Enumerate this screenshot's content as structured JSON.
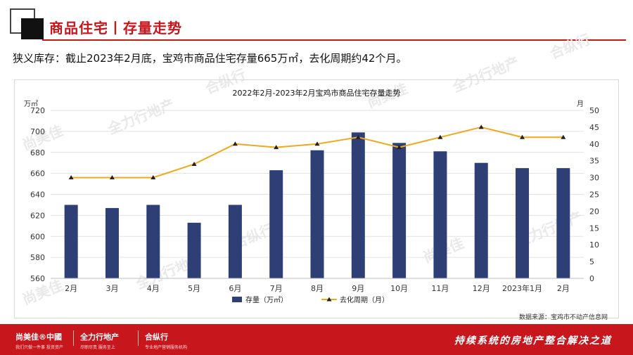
{
  "header": {
    "title": "商品住宅丨存量走势"
  },
  "summary": "狭义库存：截止2023年2月底，宝鸡市商品住宅存量665万㎡，去化周期约42个月。",
  "watermarks": [
    "尚美佳",
    "中國",
    "全力行地产",
    "合纵行"
  ],
  "source": "数据来源：宝鸡市不动产信息网",
  "footer": {
    "brand1": "尚美佳®中國",
    "brand1_sub": "我们只做一件事 投资资产",
    "brand2": "全力行地产",
    "brand2_sub": "尽职尽责 服务至上",
    "brand3": "合纵行",
    "brand3_sub": "专业地产营销服务机构",
    "slogan": "持续系统的房地产整合解决之道"
  },
  "chart_data": {
    "type": "bar+line",
    "title": "2022年2月-2023年2月宝鸡市商品住宅存量走势",
    "left_unit": "万㎡",
    "right_unit": "月",
    "categories": [
      "2月",
      "3月",
      "4月",
      "5月",
      "6月",
      "7月",
      "8月",
      "9月",
      "10月",
      "11月",
      "12月",
      "2023年1月",
      "2月"
    ],
    "series": [
      {
        "name": "存量（万㎡）",
        "type": "bar",
        "axis": "left",
        "color": "#2e3f76",
        "values": [
          630,
          627,
          630,
          613,
          630,
          663,
          682,
          699,
          689,
          681,
          670,
          665,
          665
        ]
      },
      {
        "name": "去化周期（月）",
        "type": "line",
        "axis": "right",
        "color": "#f0a81c",
        "marker_color": "#222222",
        "values": [
          30,
          30,
          30,
          34,
          40,
          39,
          40,
          42,
          39,
          42,
          45,
          42,
          42
        ]
      }
    ],
    "left_ylim": [
      560,
      720
    ],
    "left_ticks": [
      560,
      580,
      600,
      620,
      640,
      660,
      680,
      700,
      720
    ],
    "right_ylim": [
      0,
      50
    ],
    "right_ticks": [
      0,
      5,
      10,
      15,
      20,
      25,
      30,
      35,
      40,
      45,
      50
    ],
    "grid": true,
    "legend": "bottom"
  }
}
